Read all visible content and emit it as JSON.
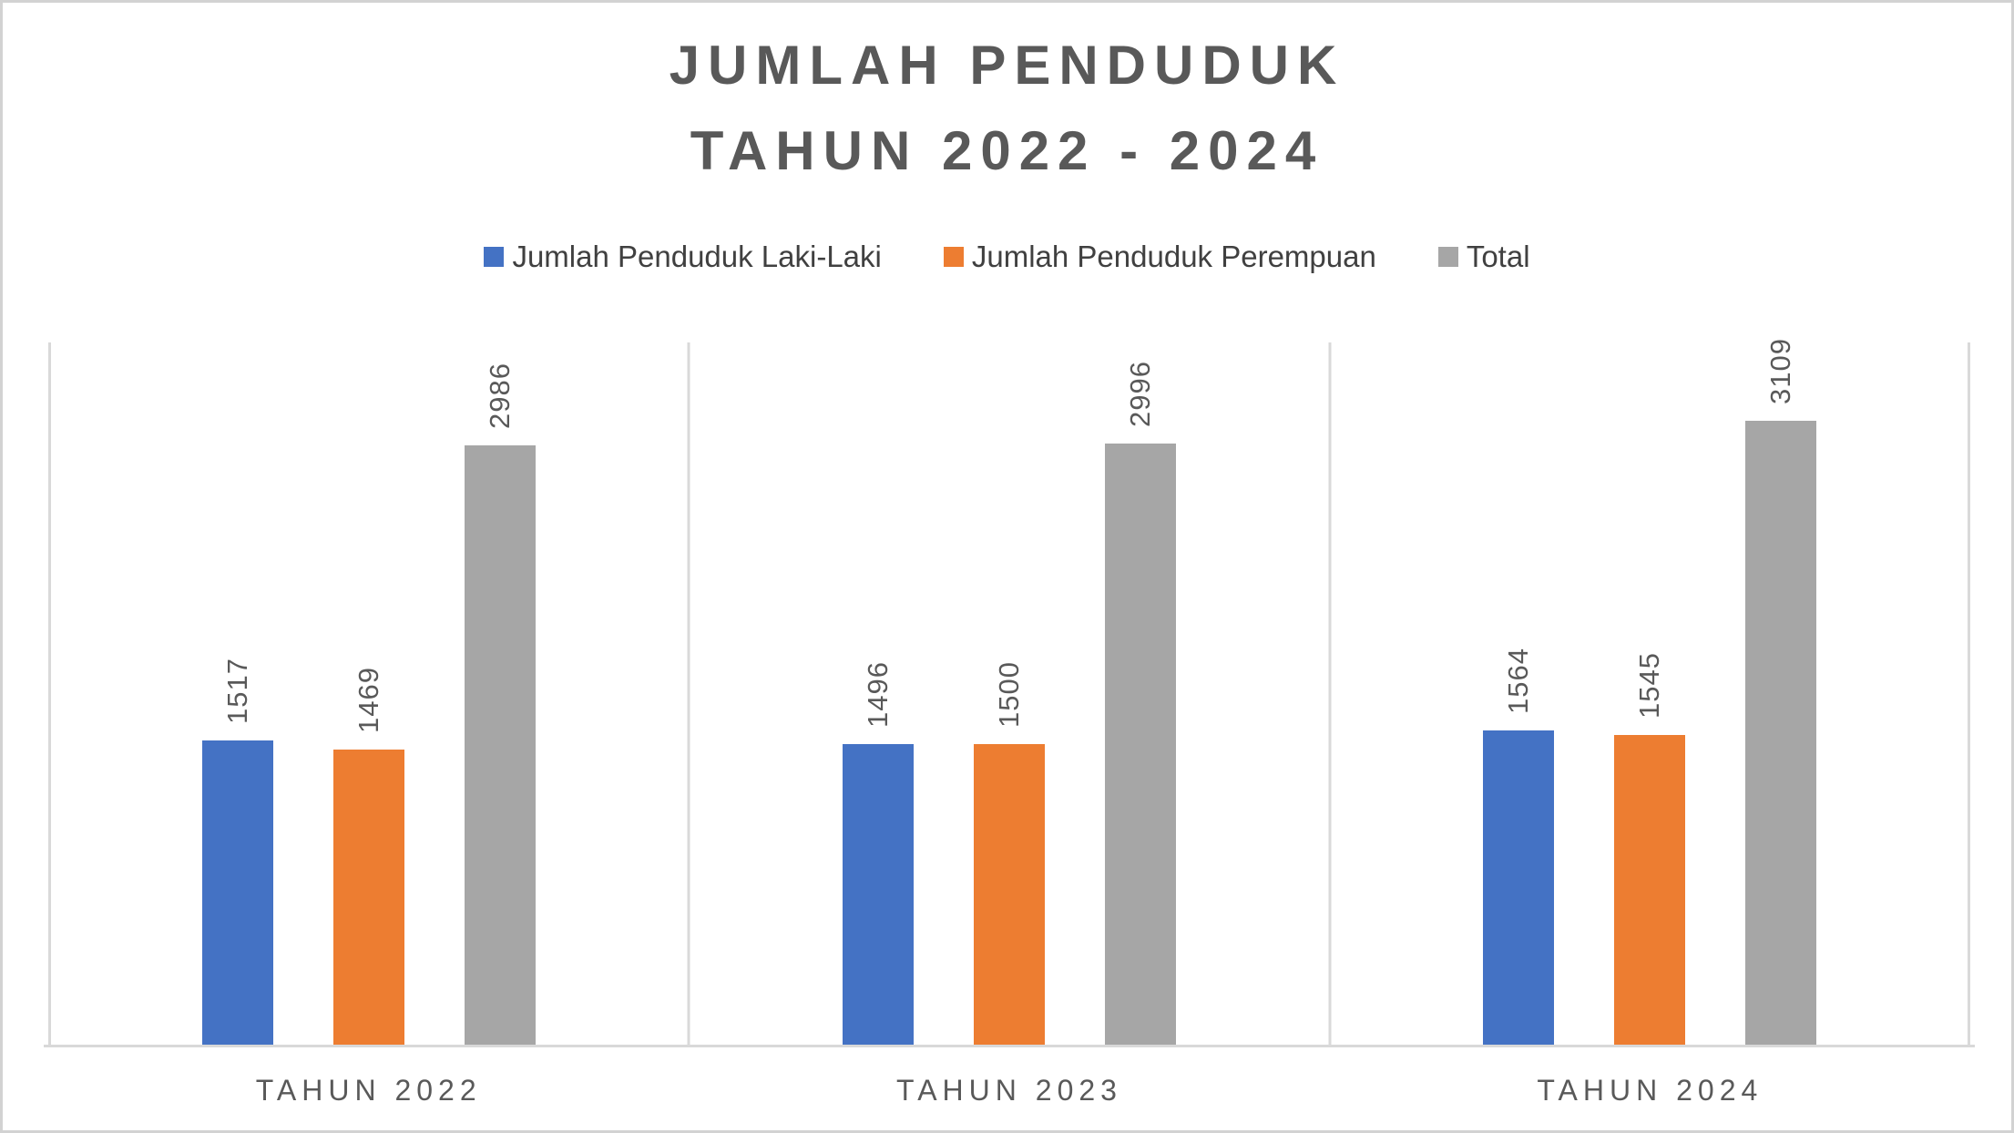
{
  "title": {
    "line1": "JUMLAH PENDUDUK",
    "line2": "TAHUN 2022 - 2024"
  },
  "colors": {
    "series_blue": "#4472C4",
    "series_orange": "#ED7D31",
    "series_gray": "#A6A6A6",
    "axis_line": "#D9D9D9",
    "text_title": "#595959",
    "text_labels": "#595959",
    "text_legend": "#404040"
  },
  "chart_data": {
    "type": "bar",
    "title": "JUMLAH PENDUDUK TAHUN 2022 - 2024",
    "categories": [
      "TAHUN 2022",
      "TAHUN 2023",
      "TAHUN 2024"
    ],
    "series": [
      {
        "name": "Jumlah Penduduk Laki-Laki",
        "color": "#4472C4",
        "values": [
          1517,
          1496,
          1564
        ]
      },
      {
        "name": "Jumlah Penduduk Perempuan",
        "color": "#ED7D31",
        "values": [
          1469,
          1500,
          1545
        ]
      },
      {
        "name": "Total",
        "color": "#A6A6A6",
        "values": [
          2986,
          2996,
          3109
        ]
      }
    ],
    "data_labels": true,
    "data_label_rotation": "vertical",
    "xlabel": "",
    "ylabel": "",
    "ylim": [
      0,
      3500
    ],
    "grid": false,
    "legend_position": "top"
  }
}
